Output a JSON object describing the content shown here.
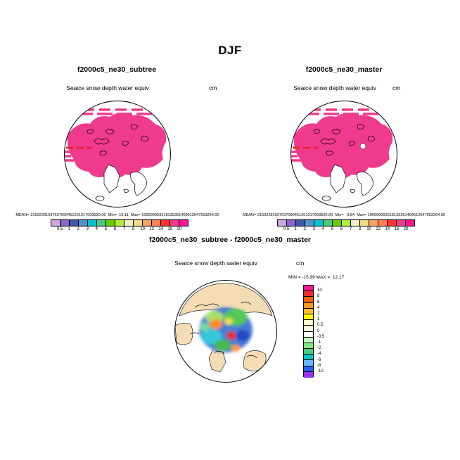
{
  "title": "DJF",
  "panels": [
    {
      "title": "f2000c5_ne30_subtree",
      "field_label": "Seaice snow depth water equiv",
      "units": "cm",
      "stats": "MEAN= 21502281037637090451201217003520.00  Min=  10.11  Max= 100000003318135351409612647553264.00"
    },
    {
      "title": "f2000c5_ne30_master",
      "field_label": "Seaice snow depth water equiv",
      "units": "cm",
      "stats": "MEAN= 21502281037637090451201217003520.00  Min=   9.84  Max= 100000003318135351409612647553264.00"
    }
  ],
  "diff": {
    "title": "f2000c5_ne30_subtree - f2000c5_ne30_master",
    "field_label": "Seaice snow depth water equiv",
    "units": "cm",
    "minmax_label": "MIN = -15.99 MAX =  12.17"
  },
  "colorbar_top": {
    "labels": [
      "0.5",
      "1",
      "2",
      "3",
      "4",
      "5",
      "6",
      "7",
      "8",
      "10",
      "12",
      "14",
      "16",
      "20"
    ],
    "colors": [
      "#CDA9DD",
      "#8968CD",
      "#3D59AB",
      "#4F94CD",
      "#00C5CD",
      "#43CD80",
      "#66CD00",
      "#B3EE3A",
      "#F2F2C9",
      "#EEDC82",
      "#F4A460",
      "#FF7F50",
      "#FF3030",
      "#EE3A8C",
      "#FF1493"
    ]
  },
  "colorbar_diff": {
    "labels": [
      "10",
      "8",
      "6",
      "4",
      "2",
      "1",
      "0.5",
      "0",
      "-0.5",
      "-1",
      "-2",
      "-4",
      "-6",
      "-8",
      "-10"
    ],
    "colors": [
      "#FF1493",
      "#EE2C2C",
      "#FF6103",
      "#FF9912",
      "#FFC125",
      "#FFFF00",
      "#FFFACD",
      "#F5F5DC",
      "#FFFFFF",
      "#C1FFC1",
      "#7FE87F",
      "#43CD80",
      "#00C5CD",
      "#63B8FF",
      "#2E5FFE",
      "#9B30FF"
    ]
  },
  "colors": {
    "ice_pink": "#F03A8E",
    "stripe_red": "#E82020",
    "land_tan": "#F4DDB5"
  },
  "chart_data": [
    {
      "type": "heatmap",
      "title": "f2000c5_ne30_subtree",
      "season": "DJF",
      "variable": "Seaice snow depth water equiv",
      "units": "cm",
      "projection": "north-polar-stereographic",
      "stats": {
        "mean": "21502281037637090451201217003520.00",
        "min": "10.11",
        "max": "100000003318135351409612647553264.00"
      },
      "levels": [
        0.5,
        1,
        2,
        3,
        4,
        5,
        6,
        7,
        8,
        10,
        12,
        14,
        16,
        20
      ],
      "legend_position": "bottom"
    },
    {
      "type": "heatmap",
      "title": "f2000c5_ne30_master",
      "season": "DJF",
      "variable": "Seaice snow depth water equiv",
      "units": "cm",
      "projection": "north-polar-stereographic",
      "stats": {
        "mean": "21502281037637090451201217003520.00",
        "min": "9.84",
        "max": "100000003318135351409612647553264.00"
      },
      "levels": [
        0.5,
        1,
        2,
        3,
        4,
        5,
        6,
        7,
        8,
        10,
        12,
        14,
        16,
        20
      ],
      "legend_position": "bottom"
    },
    {
      "type": "heatmap",
      "title": "f2000c5_ne30_subtree - f2000c5_ne30_master",
      "season": "DJF",
      "variable": "Seaice snow depth water equiv",
      "units": "cm",
      "projection": "north-polar-stereographic",
      "stats": {
        "min": "-15.99",
        "max": "12.17"
      },
      "levels": [
        -10,
        -8,
        -6,
        -4,
        -2,
        -1,
        -0.5,
        0,
        0.5,
        1,
        2,
        4,
        6,
        8,
        10
      ],
      "legend_position": "right"
    }
  ]
}
